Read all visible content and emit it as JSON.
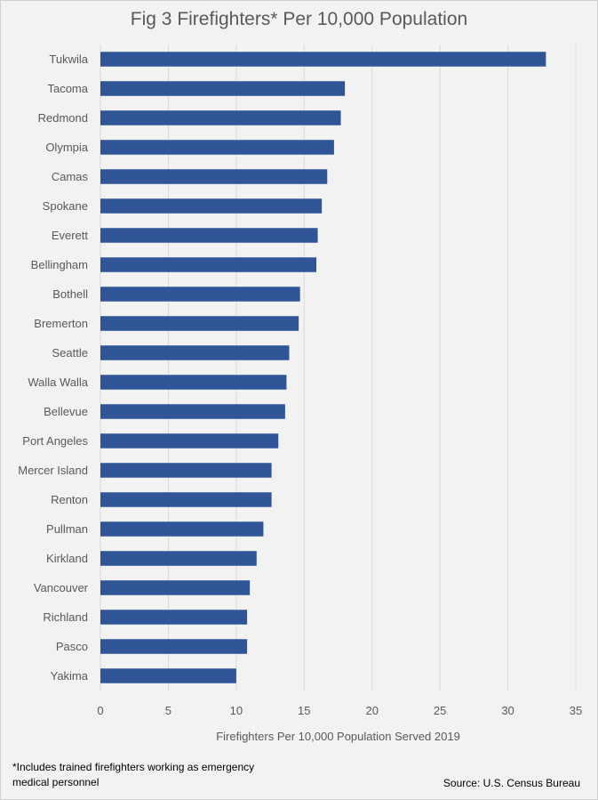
{
  "chart_data": {
    "type": "bar",
    "orientation": "horizontal",
    "title": "Fig 3 Firefighters* Per 10,000 Population",
    "xlabel": "Firefighters Per 10,000 Population Served 2019",
    "ylabel": "",
    "xlim": [
      0,
      35
    ],
    "xticks": [
      0,
      5,
      10,
      15,
      20,
      25,
      30,
      35
    ],
    "grid": true,
    "bar_color": "#2f5597",
    "categories": [
      "Tukwila",
      "Tacoma",
      "Redmond",
      "Olympia",
      "Camas",
      "Spokane",
      "Everett",
      "Bellingham",
      "Bothell",
      "Bremerton",
      "Seattle",
      "Walla Walla",
      "Bellevue",
      "Port Angeles",
      "Mercer Island",
      "Renton",
      "Pullman",
      "Kirkland",
      "Vancouver",
      "Richland",
      "Pasco",
      "Yakima"
    ],
    "values": [
      32.8,
      18.0,
      17.7,
      17.2,
      16.7,
      16.3,
      16.0,
      15.9,
      14.7,
      14.6,
      13.9,
      13.7,
      13.6,
      13.1,
      12.6,
      12.6,
      12.0,
      11.5,
      11.0,
      10.8,
      10.8,
      10.0
    ]
  },
  "footnote": "*Includes trained firefighters working as emergency medical personnel",
  "source": "Source: U.S. Census Bureau"
}
